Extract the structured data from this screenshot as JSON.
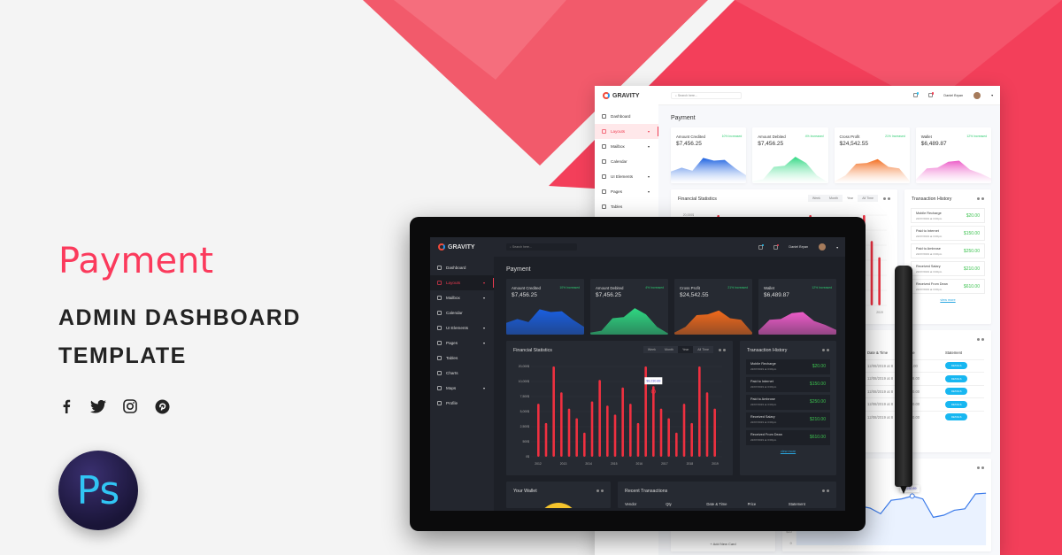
{
  "hero": {
    "accent": "Payment",
    "title_line1": "ADMIN DASHBOARD",
    "title_line2": "TEMPLATE",
    "social": [
      "facebook-icon",
      "twitter-icon",
      "instagram-icon",
      "pinterest-icon"
    ],
    "badge": "Ps"
  },
  "colors": {
    "accent": "#fb3a5c",
    "background": "#f4f4f4",
    "bar": "#ef3040",
    "positive": "#3cc24f",
    "details_button": "#18b7f1"
  },
  "app": {
    "brand": "GRAVITY",
    "search_placeholder": "Search here...",
    "user": "Daniel Bryan",
    "nav": [
      {
        "label": "Dashboard",
        "icon": "dashboard-icon"
      },
      {
        "label": "Layouts",
        "icon": "layout-icon",
        "active": true,
        "caret": true
      },
      {
        "label": "Mailbox",
        "icon": "mail-icon",
        "caret": true
      },
      {
        "label": "Calendar",
        "icon": "calendar-icon"
      },
      {
        "label": "UI Elements",
        "icon": "elements-icon",
        "caret": true
      },
      {
        "label": "Pages",
        "icon": "pages-icon",
        "caret": true
      },
      {
        "label": "Tables",
        "icon": "table-icon"
      },
      {
        "label": "Charts",
        "icon": "chart-icon"
      },
      {
        "label": "Maps",
        "icon": "map-icon",
        "caret": true
      },
      {
        "label": "Profile",
        "icon": "user-icon"
      }
    ],
    "page_title": "Payment",
    "cards": [
      {
        "label": "Amount Credited",
        "pct": "10% Increased",
        "value": "$7,456.25",
        "color": "#1a5fe0",
        "spark": [
          3,
          4,
          3.2,
          6.5,
          5.8,
          6,
          3.8,
          2
        ]
      },
      {
        "label": "Amount Debited",
        "pct": "4% Increased",
        "value": "$7,456.25",
        "color": "#2fd882",
        "spark": [
          0.5,
          1,
          4.2,
          4.5,
          6.8,
          5.2,
          2,
          0.3
        ]
      },
      {
        "label": "Cross Profit",
        "pct": "21% Increased",
        "value": "$24,542.55",
        "color": "#f26a1b",
        "spark": [
          0.5,
          2,
          5,
          5.2,
          6.2,
          4.2,
          3.8,
          0.5
        ]
      },
      {
        "label": "Wallet",
        "pct": "12% Increased",
        "value": "$6,489.87",
        "color": "#ec5cc8",
        "spark": [
          1,
          3.8,
          4,
          5.5,
          5.8,
          3.5,
          2.5,
          1.2
        ]
      }
    ],
    "financial": {
      "title": "Financial Statistics",
      "ranges": [
        "Week",
        "Month",
        "Year",
        "All Time"
      ],
      "selected": "Year"
    },
    "history": {
      "title": "Transaction History",
      "items": [
        {
          "name": "Mobile Recharge",
          "time": "22/07/2019 at 3:00pm",
          "amount": "$20.00"
        },
        {
          "name": "Paid to Internet",
          "time": "22/07/2019 at 3:00pm",
          "amount": "$150.00"
        },
        {
          "name": "Paid to Ambrose",
          "time": "22/07/2019 at 3:00pm",
          "amount": "$250.00"
        },
        {
          "name": "Received Salary",
          "time": "22/07/2019 at 3:00pm",
          "amount": "$210.00"
        },
        {
          "name": "Received From Dean",
          "time": "22/07/2019 at 3:00pm",
          "amount": "$610.00"
        }
      ],
      "view_more": "view more"
    },
    "wallet": {
      "title": "Your Wallet",
      "add_card": "+ Add New Card"
    },
    "recent": {
      "title": "Recent Transactions",
      "columns": [
        "Vendor",
        "Qty",
        "Date & Time",
        "Price",
        "Statement"
      ],
      "rows": [
        {
          "date": "12/08/2019 at 8",
          "price": "$46.00",
          "statement": "DETAILS"
        },
        {
          "date": "12/08/2019 at 8",
          "price": "$218.00",
          "statement": "DETAILS"
        },
        {
          "date": "12/08/2019 at 8",
          "price": "$410.00",
          "statement": "DETAILS"
        },
        {
          "date": "12/08/2019 at 8",
          "price": "$300.00",
          "statement": "DETAILS"
        },
        {
          "date": "12/08/2019 at 8",
          "price": "$350.00",
          "statement": "DETAILS"
        }
      ]
    },
    "balance": {
      "title": "Balance Transactions",
      "tooltip": "$9,230.89",
      "yticks": [
        "$10",
        "0"
      ],
      "values": [
        6,
        6.8,
        5,
        4.2,
        4.5,
        4,
        4.8,
        4.5,
        3.7,
        5.6,
        5.8,
        6.2,
        5.8,
        3.2,
        3.5,
        4.2,
        4.4,
        6.5,
        6.6
      ]
    }
  },
  "chart_data": {
    "type": "bar",
    "title": "Financial Statistics",
    "yticks": [
      "20,000$",
      "10,000$",
      "7,500$",
      "5,000$",
      "2,500$",
      "500$",
      "0$"
    ],
    "ytick_values": [
      20000,
      10000,
      7500,
      5000,
      2500,
      500,
      0
    ],
    "xticks": [
      "2012",
      "2013",
      "2014",
      "2015",
      "2016",
      "2017",
      "2018",
      "2019"
    ],
    "values": [
      6300,
      3100,
      20000,
      8200,
      5500,
      3900,
      1700,
      6700,
      11000,
      6000,
      4500,
      9000,
      6300,
      3100,
      20000,
      9230.89,
      5500,
      3900,
      1700,
      6300,
      3100,
      20000,
      8200,
      5500
    ],
    "tooltip": {
      "index": 15,
      "label": "$9,230.89"
    },
    "grid": true
  }
}
